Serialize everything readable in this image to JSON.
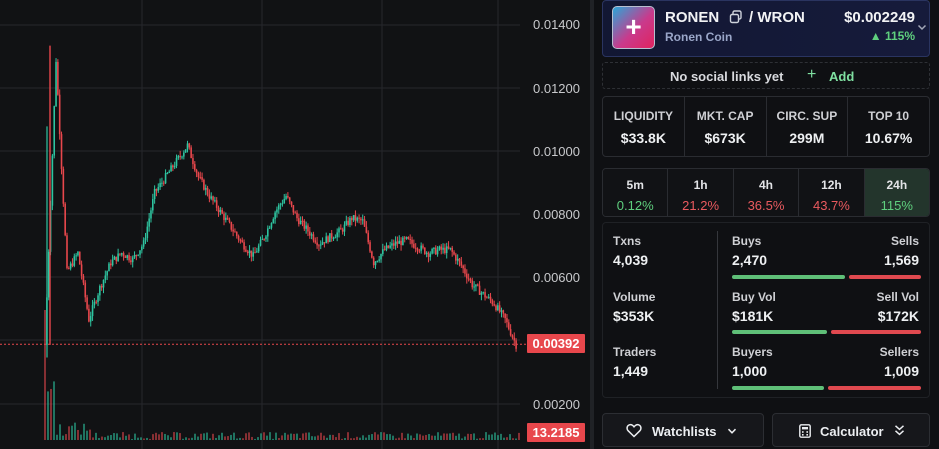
{
  "chart": {
    "y_axis_labels": [
      "0.01400",
      "0.01200",
      "0.01000",
      "0.00800",
      "0.00600",
      "0.00200"
    ],
    "current_price_badge": "0.00392",
    "volume_badge": "13.2185",
    "up_color": "#2ec4a0",
    "down_color": "#e8474c"
  },
  "chart_data": {
    "type": "candlestick",
    "y_axis": {
      "labels": [
        "0.01400",
        "0.01200",
        "0.01000",
        "0.00800",
        "0.00600",
        "0.00200"
      ],
      "ylim": [
        0.0004,
        0.0149
      ]
    },
    "current_price": 0.00392,
    "current_volume": 13.2185,
    "price_path": [
      [
        0,
        0.0039
      ],
      [
        1,
        0.0129
      ],
      [
        2,
        0.0062
      ],
      [
        3,
        0.0068
      ],
      [
        4,
        0.0047
      ],
      [
        5,
        0.0057
      ],
      [
        6,
        0.0065
      ],
      [
        7,
        0.0068
      ],
      [
        8,
        0.0066
      ],
      [
        9,
        0.0071
      ],
      [
        10,
        0.0087
      ],
      [
        11,
        0.0092
      ],
      [
        12,
        0.0097
      ],
      [
        13,
        0.0102
      ],
      [
        14,
        0.0092
      ],
      [
        15,
        0.0086
      ],
      [
        16,
        0.0081
      ],
      [
        17,
        0.0076
      ],
      [
        18,
        0.0071
      ],
      [
        19,
        0.0067
      ],
      [
        20,
        0.0073
      ],
      [
        21,
        0.0081
      ],
      [
        22,
        0.0086
      ],
      [
        23,
        0.0079
      ],
      [
        24,
        0.0075
      ],
      [
        25,
        0.0071
      ],
      [
        26,
        0.0073
      ],
      [
        27,
        0.0075
      ],
      [
        28,
        0.0079
      ],
      [
        29,
        0.0078
      ],
      [
        30,
        0.0065
      ],
      [
        31,
        0.0069
      ],
      [
        32,
        0.0071
      ],
      [
        33,
        0.0072
      ],
      [
        34,
        0.007
      ],
      [
        35,
        0.0068
      ],
      [
        36,
        0.0069
      ],
      [
        37,
        0.0069
      ],
      [
        38,
        0.0064
      ],
      [
        39,
        0.0058
      ],
      [
        40,
        0.0055
      ],
      [
        41,
        0.0052
      ],
      [
        42,
        0.0047
      ],
      [
        43,
        0.0039
      ]
    ]
  },
  "token": {
    "symbol": "RONEN",
    "pair_sep": "/ WRON",
    "name": "Ronen Coin",
    "price": "$0.002249",
    "change": "▲ 115%",
    "accent": "#5fcf7e"
  },
  "social": {
    "empty_text": "No social links yet",
    "add_label": "Add"
  },
  "metrics": [
    {
      "label": "LIQUIDITY",
      "value": "$33.8K"
    },
    {
      "label": "MKT. CAP",
      "value": "$673K"
    },
    {
      "label": "CIRC. SUP",
      "value": "299M"
    },
    {
      "label": "TOP 10",
      "value": "10.67%"
    }
  ],
  "timeframes": [
    {
      "label": "5m",
      "value": "0.12%",
      "trend": "pos"
    },
    {
      "label": "1h",
      "value": "21.2%",
      "trend": "neg"
    },
    {
      "label": "4h",
      "value": "36.5%",
      "trend": "neg"
    },
    {
      "label": "12h",
      "value": "43.7%",
      "trend": "neg"
    },
    {
      "label": "24h",
      "value": "115%",
      "trend": "pos",
      "active": true
    }
  ],
  "stats": {
    "txns_label": "Txns",
    "txns_value": "4,039",
    "volume_label": "Volume",
    "volume_value": "$353K",
    "traders_label": "Traders",
    "traders_value": "1,449",
    "buys_label": "Buys",
    "buys_value": "2,470",
    "sells_label": "Sells",
    "sells_value": "1,569",
    "buyvol_label": "Buy Vol",
    "buyvol_value": "$181K",
    "sellvol_label": "Sell Vol",
    "sellvol_value": "$172K",
    "buyers_label": "Buyers",
    "buyers_value": "1,000",
    "sellers_label": "Sellers",
    "sellers_value": "1,009",
    "buys_fraction": 0.6115,
    "buyvol_fraction": 0.5127,
    "buyers_fraction": 0.4978
  },
  "footer": {
    "watchlists_label": "Watchlists",
    "calculator_label": "Calculator"
  }
}
